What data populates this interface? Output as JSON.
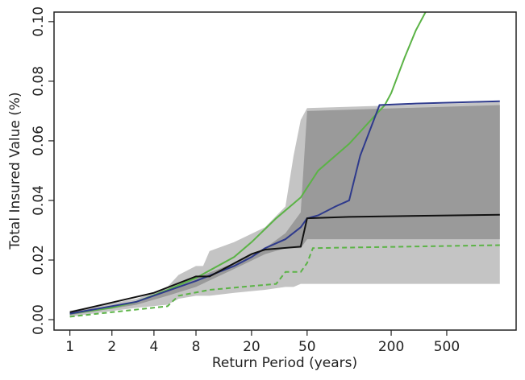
{
  "chart_data": {
    "type": "line",
    "xlabel": "Return Period (years)",
    "ylabel": "Total Insured Value (%)",
    "xscale": "log",
    "xlim": [
      0.77,
      1570
    ],
    "ylim": [
      -0.0035,
      0.1032
    ],
    "xticks": [
      1,
      2,
      4,
      8,
      20,
      50,
      200,
      500
    ],
    "yticks": [
      {
        "value": 0,
        "label": "0.00"
      },
      {
        "value": 0.02,
        "label": "0.02"
      },
      {
        "value": 0.04,
        "label": "0.04"
      },
      {
        "value": 0.06,
        "label": "0.06"
      },
      {
        "value": 0.08,
        "label": "0.08"
      },
      {
        "value": 0.1,
        "label": "0.10"
      }
    ],
    "bands": [
      {
        "color": "#c4c4c4",
        "x": [
          1,
          3,
          5,
          6,
          8,
          9,
          10,
          15,
          25,
          35,
          40,
          45,
          50,
          1200
        ],
        "upper": [
          0.003,
          0.007,
          0.011,
          0.015,
          0.018,
          0.018,
          0.023,
          0.026,
          0.031,
          0.038,
          0.055,
          0.067,
          0.071,
          0.073
        ],
        "lower": [
          0.001,
          0.004,
          0.005,
          0.007,
          0.008,
          0.008,
          0.008,
          0.009,
          0.01,
          0.011,
          0.011,
          0.012,
          0.012,
          0.012
        ]
      },
      {
        "color": "#9a9a9a",
        "x": [
          1,
          3,
          5,
          8,
          15,
          25,
          35,
          45,
          50,
          1200
        ],
        "upper": [
          0.0025,
          0.006,
          0.01,
          0.014,
          0.019,
          0.024,
          0.029,
          0.036,
          0.07,
          0.072
        ],
        "lower": [
          0.0015,
          0.005,
          0.008,
          0.011,
          0.017,
          0.022,
          0.024,
          0.024,
          0.027,
          0.027
        ]
      }
    ],
    "series": [
      {
        "color": "#5bb346",
        "dash": false,
        "x": [
          1,
          2,
          3,
          5,
          8,
          15,
          20,
          30,
          45,
          60,
          100,
          150,
          180,
          200,
          250,
          300,
          360
        ],
        "values": [
          0.002,
          0.004,
          0.006,
          0.01,
          0.014,
          0.021,
          0.026,
          0.034,
          0.041,
          0.05,
          0.059,
          0.068,
          0.072,
          0.076,
          0.088,
          0.097,
          0.104
        ]
      },
      {
        "color": "#2e3a8c",
        "dash": false,
        "x": [
          1,
          3,
          8,
          15,
          20,
          25,
          35,
          45,
          50,
          60,
          80,
          100,
          120,
          165,
          300,
          1200
        ],
        "values": [
          0.002,
          0.006,
          0.013,
          0.018,
          0.021,
          0.024,
          0.027,
          0.031,
          0.034,
          0.035,
          0.038,
          0.04,
          0.055,
          0.072,
          0.0725,
          0.0733
        ]
      },
      {
        "color": "#111111",
        "dash": false,
        "x": [
          1,
          4,
          8,
          10,
          20,
          25,
          45,
          50,
          100,
          1200
        ],
        "values": [
          0.0025,
          0.009,
          0.0145,
          0.0145,
          0.022,
          0.0235,
          0.0245,
          0.034,
          0.0345,
          0.0352
        ]
      },
      {
        "color": "#5bb346",
        "dash": true,
        "x": [
          1,
          5,
          6,
          10,
          30,
          35,
          45,
          50,
          55,
          1200
        ],
        "values": [
          0.001,
          0.0045,
          0.008,
          0.01,
          0.012,
          0.016,
          0.016,
          0.019,
          0.024,
          0.025
        ]
      }
    ]
  }
}
